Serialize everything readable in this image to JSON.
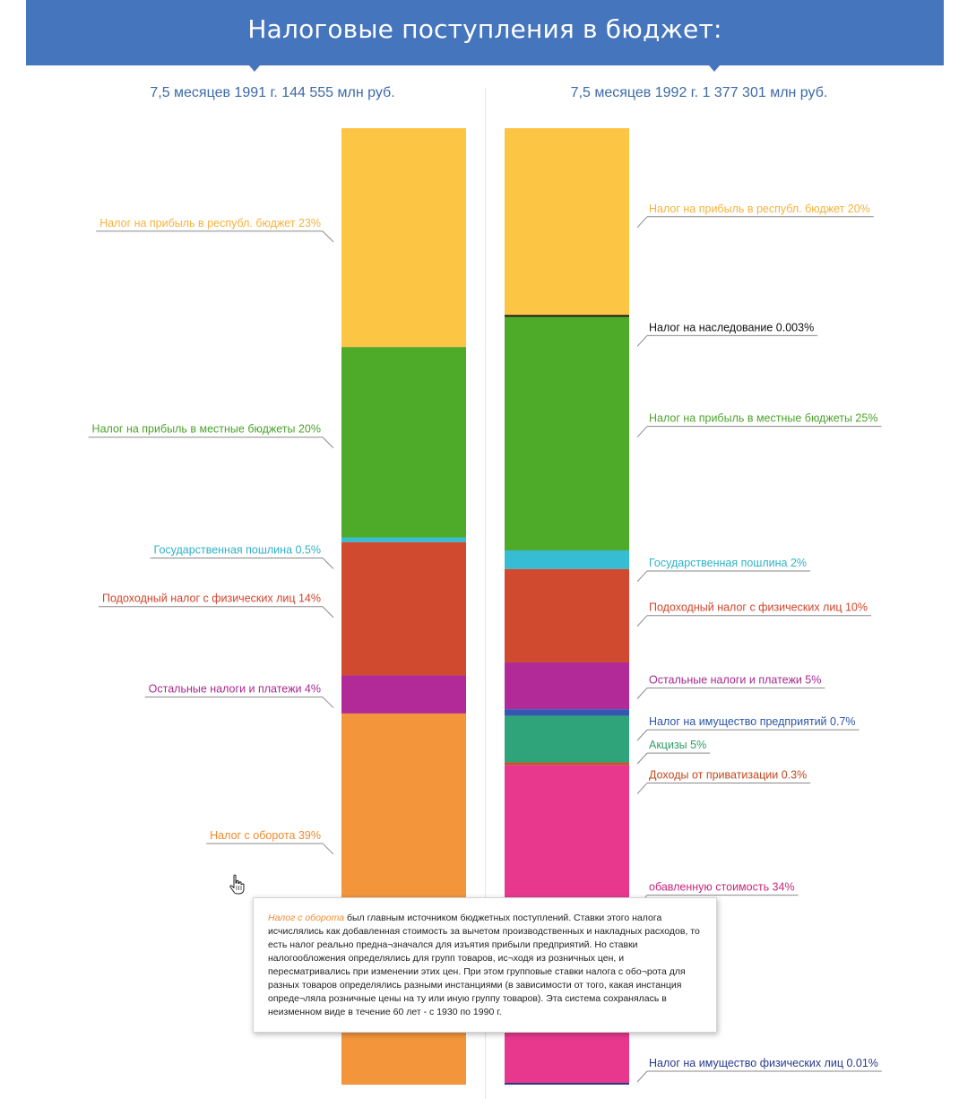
{
  "title": "Налоговые поступления в бюджет:",
  "columns": [
    {
      "title": "7,5 месяцев 1991 г. 144 555 млн руб."
    },
    {
      "title": "7,5 месяцев 1992 г. 1 377 301 млн руб."
    }
  ],
  "chart_data": [
    {
      "type": "stacked_bar",
      "title": "7,5 месяцев 1991 г. 144 555 млн руб.",
      "total": 144555,
      "unit": "млн руб.",
      "label_side": "left",
      "series": [
        {
          "name": "Налог на прибыль в республ. бюджет",
          "value": 23,
          "label": "Налог на прибыль в республ. бюджет 23%",
          "color": "#fcc543"
        },
        {
          "name": "Налог на прибыль в местные бюджеты",
          "value": 20,
          "label": "Налог на прибыль в местные бюджеты 20%",
          "color": "#4dab29"
        },
        {
          "name": "Государственная пошлина",
          "value": 0.5,
          "label": "Государственная пошлина 0.5%",
          "color": "#36bcd3"
        },
        {
          "name": "Подоходный налог с физических лиц",
          "value": 14,
          "label": "Подоходный налог с физических лиц 14%",
          "color": "#d04a2f"
        },
        {
          "name": "Остальные налоги и платежи",
          "value": 4,
          "label": "Остальные налоги и платежи 4%",
          "color": "#b12a98"
        },
        {
          "name": "Налог с оборота",
          "value": 39,
          "label": "Налог с оборота 39%",
          "color": "#f2953b"
        }
      ]
    },
    {
      "type": "stacked_bar",
      "title": "7,5 месяцев 1992 г. 1 377 301 млн руб.",
      "total": 1377301,
      "unit": "млн руб.",
      "label_side": "right",
      "series": [
        {
          "name": "Налог на прибыль в республ. бюджет",
          "value": 20,
          "label": "Налог на прибыль в республ. бюджет 20%",
          "color": "#fcc543"
        },
        {
          "name": "Налог на наследование",
          "value": 0.003,
          "label": "Налог на наследование 0.003%",
          "color": "#111111"
        },
        {
          "name": "Налог на прибыль в местные бюджеты",
          "value": 25,
          "label": "Налог на прибыль в местные бюджеты 25%",
          "color": "#4dab29"
        },
        {
          "name": "Государственная пошлина",
          "value": 2,
          "label": "Государственная пошлина 2%",
          "color": "#36bcd3"
        },
        {
          "name": "Подоходный налог с физических лиц",
          "value": 10,
          "label": "Подоходный налог с физических лиц 10%",
          "color": "#d04a2f"
        },
        {
          "name": "Остальные налоги и платежи",
          "value": 5,
          "label": "Остальные налоги и платежи 5%",
          "color": "#b12a98"
        },
        {
          "name": "Налог на имущество предприятий",
          "value": 0.7,
          "label": "Налог на имущество предприятий 0.7%",
          "color": "#3457b2"
        },
        {
          "name": "Акцизы",
          "value": 5,
          "label": "Акцизы 5%",
          "color": "#2fa37a"
        },
        {
          "name": "Доходы от приватизации",
          "value": 0.3,
          "label": "Доходы от приватизации 0.3%",
          "color": "#c9522a"
        },
        {
          "name": "Налог на добавленную стоимость",
          "value": 34,
          "label": "обавленную стоимость 34%",
          "color": "#e8388e"
        },
        {
          "name": "Налог на имущество физических лиц",
          "value": 0.01,
          "label": "Налог на имущество физических лиц 0.01%",
          "color": "#2d3a8c"
        }
      ]
    }
  ],
  "label_colors": {
    "Налог на прибыль в республ. бюджет": "#f6b23a",
    "Налог на наследование": "#111111",
    "Налог на прибыль в местные бюджеты": "#4ba32b",
    "Государственная пошлина": "#2fb3c9",
    "Подоходный налог с физических лиц": "#d2442b",
    "Остальные налоги и платежи": "#a82a8f",
    "Налог на имущество предприятий": "#2c55a8",
    "Акцизы": "#2f9c6c",
    "Доходы от приватизации": "#c0491f",
    "Налог с оборота": "#f08a2c",
    "Налог на добавленную стоимость": "#c8277a",
    "Налог на имущество физических лиц": "#283a8e"
  },
  "tooltip": {
    "term": "Налог с оборота",
    "text": " был главным источником бюджетных поступлений. Ставки этого налога исчислялись как добавленная стоимость за вычетом производственных и накладных расходов, то есть налог реально предна¬значался для изъятия прибыли предприятий. Но ставки налогообложения определялись для групп товаров, ис¬ходя из розничных цен, и пересматривались при изменении этих цен. При этом групповые ставки налога с обо¬рота для разных товаров определялись разными инстанциями (в зависимости от того, какая инстанция опреде¬ляла розничные цены на ту или иную группу товаров). Эта система сохранялась в неизменном виде в течение 60 лет - с 1930 по 1990 г."
  },
  "icons": {
    "cursor": "hand-pointer-icon"
  }
}
